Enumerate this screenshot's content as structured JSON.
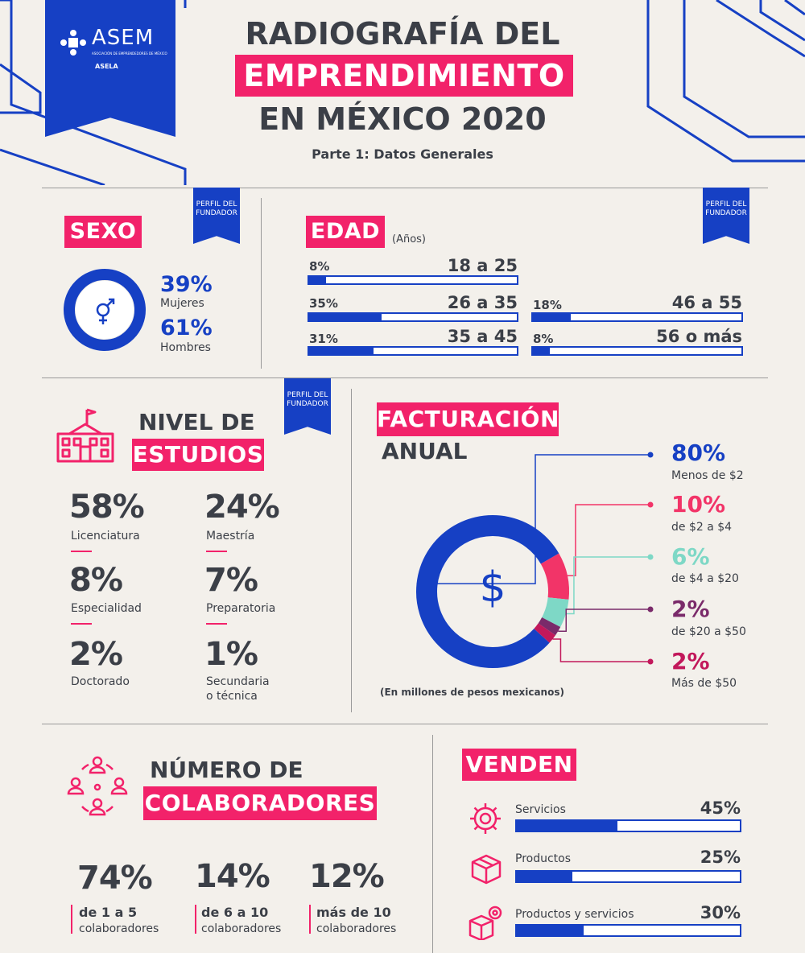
{
  "header": {
    "logo_text": "ASEM",
    "logo_sub": "ASOCIACIÓN DE EMPRENDEDORES DE MÉXICO",
    "logo_partner": "ASELA",
    "title_line1": "RADIOGRAFÍA DEL",
    "title_line2": "EMPRENDIMIENTO",
    "title_line3": "EN MÉXICO 2020",
    "subtitle": "Parte 1: Datos Generales"
  },
  "ribbon_label": "PERFIL DEL FUNDADOR",
  "sexo": {
    "title": "SEXO",
    "women_pct": "39%",
    "women_label": "Mujeres",
    "men_pct": "61%",
    "men_label": "Hombres",
    "women_fraction": 0.39
  },
  "edad": {
    "title": "EDAD",
    "unit": "(Años)",
    "groups": [
      {
        "pct": "8%",
        "range": "18 a 25",
        "value": 0.08
      },
      {
        "pct": "35%",
        "range": "26 a 35",
        "value": 0.35
      },
      {
        "pct": "31%",
        "range": "35 a 45",
        "value": 0.31
      },
      {
        "pct": "18%",
        "range": "46 a 55",
        "value": 0.18
      },
      {
        "pct": "8%",
        "range": "56 o más",
        "value": 0.08
      }
    ]
  },
  "estudios": {
    "title_line1": "NIVEL DE",
    "title_line2": "ESTUDIOS",
    "items": [
      {
        "pct": "58%",
        "label": "Licenciatura"
      },
      {
        "pct": "24%",
        "label": "Maestría"
      },
      {
        "pct": "8%",
        "label": "Especialidad"
      },
      {
        "pct": "7%",
        "label": "Preparatoria"
      },
      {
        "pct": "2%",
        "label": "Doctorado"
      },
      {
        "pct": "1%",
        "label": "Secundaria",
        "label2": "o técnica"
      }
    ]
  },
  "facturacion": {
    "title_line1": "FACTURACIÓN",
    "title_line2": "ANUAL",
    "note": "(En millones de pesos mexicanos)",
    "center_symbol": "$",
    "items": [
      {
        "pct": "80%",
        "label": "Menos de $2",
        "value": 80,
        "color": "#1640c4"
      },
      {
        "pct": "10%",
        "label": "de $2 a $4",
        "value": 10,
        "color": "#f23468"
      },
      {
        "pct": "6%",
        "label": "de $4 a $20",
        "value": 6,
        "color": "#7ed8c6"
      },
      {
        "pct": "2%",
        "label": "de $20 a $50",
        "value": 2,
        "color": "#7a2a6a"
      },
      {
        "pct": "2%",
        "label": "Más de $50",
        "value": 2,
        "color": "#c2185b"
      }
    ]
  },
  "colaboradores": {
    "title_line1": "NÚMERO DE",
    "title_line2": "COLABORADORES",
    "items": [
      {
        "pct": "74%",
        "line1": "de 1 a 5",
        "line2": "colaboradores"
      },
      {
        "pct": "14%",
        "line1": "de 6 a 10",
        "line2": "colaboradores"
      },
      {
        "pct": "12%",
        "line1": "más de 10",
        "line2": "colaboradores"
      }
    ]
  },
  "venden": {
    "title": "VENDEN",
    "items": [
      {
        "label": "Servicios",
        "pct": "45%",
        "value": 0.45,
        "icon": "gear-icon"
      },
      {
        "label": "Productos",
        "pct": "25%",
        "value": 0.25,
        "icon": "box-icon"
      },
      {
        "label": "Productos y servicios",
        "pct": "30%",
        "value": 0.3,
        "icon": "box-gear-icon"
      }
    ]
  },
  "colors": {
    "blue": "#1640c4",
    "pink": "#f2226a",
    "background": "#f3f0eb",
    "text": "#3b3f47"
  }
}
